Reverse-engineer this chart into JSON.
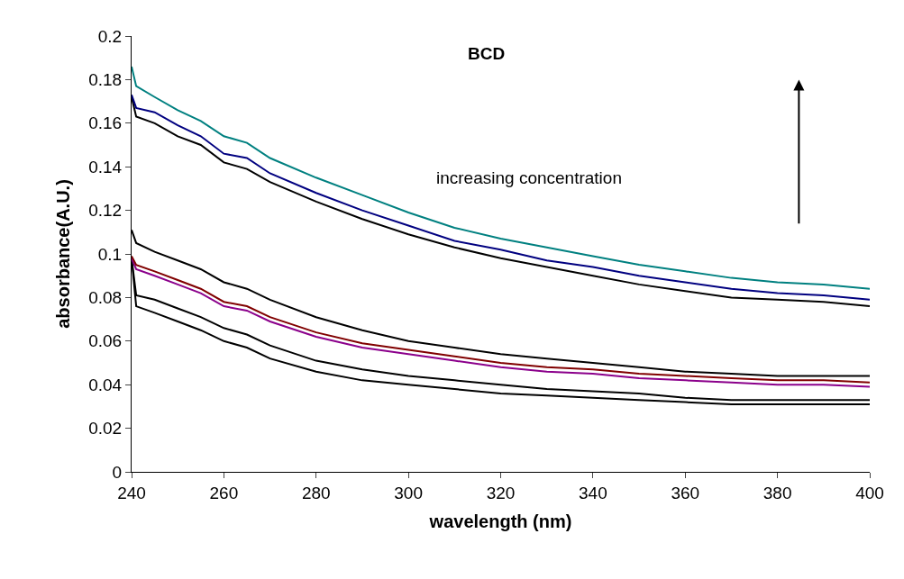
{
  "chart_data": {
    "type": "line",
    "title": "BCD",
    "xlabel": "wavelength (nm)",
    "ylabel": "absorbance(A.U.)",
    "annotations": [
      "increasing concentration"
    ],
    "x": [
      240,
      241,
      245,
      250,
      255,
      260,
      265,
      270,
      280,
      290,
      300,
      310,
      320,
      330,
      340,
      350,
      360,
      370,
      380,
      390,
      400
    ],
    "series": [
      {
        "color": "#000000",
        "values": [
          0.098,
          0.076,
          0.073,
          0.069,
          0.065,
          0.06,
          0.057,
          0.052,
          0.046,
          0.042,
          0.04,
          0.038,
          0.036,
          0.035,
          0.034,
          0.033,
          0.032,
          0.031,
          0.031,
          0.031,
          0.031
        ]
      },
      {
        "color": "#000000",
        "values": [
          0.098,
          0.081,
          0.079,
          0.075,
          0.071,
          0.066,
          0.063,
          0.058,
          0.051,
          0.047,
          0.044,
          0.042,
          0.04,
          0.038,
          0.037,
          0.036,
          0.034,
          0.033,
          0.033,
          0.033,
          0.033
        ]
      },
      {
        "color": "#8b008b",
        "values": [
          0.098,
          0.093,
          0.09,
          0.086,
          0.082,
          0.076,
          0.074,
          0.069,
          0.062,
          0.057,
          0.054,
          0.051,
          0.048,
          0.046,
          0.045,
          0.043,
          0.042,
          0.041,
          0.04,
          0.04,
          0.039
        ]
      },
      {
        "color": "#800000",
        "values": [
          0.099,
          0.095,
          0.092,
          0.088,
          0.084,
          0.078,
          0.076,
          0.071,
          0.064,
          0.059,
          0.056,
          0.053,
          0.05,
          0.048,
          0.047,
          0.045,
          0.044,
          0.043,
          0.042,
          0.042,
          0.041
        ]
      },
      {
        "color": "#000000",
        "values": [
          0.111,
          0.105,
          0.101,
          0.097,
          0.093,
          0.087,
          0.084,
          0.079,
          0.071,
          0.065,
          0.06,
          0.057,
          0.054,
          0.052,
          0.05,
          0.048,
          0.046,
          0.045,
          0.044,
          0.044,
          0.044
        ]
      },
      {
        "color": "#000000",
        "values": [
          0.172,
          0.163,
          0.16,
          0.154,
          0.15,
          0.142,
          0.139,
          0.133,
          0.124,
          0.116,
          0.109,
          0.103,
          0.098,
          0.094,
          0.09,
          0.086,
          0.083,
          0.08,
          0.079,
          0.078,
          0.076
        ]
      },
      {
        "color": "#000080",
        "values": [
          0.173,
          0.167,
          0.165,
          0.159,
          0.154,
          0.146,
          0.144,
          0.137,
          0.128,
          0.12,
          0.113,
          0.106,
          0.102,
          0.097,
          0.094,
          0.09,
          0.087,
          0.084,
          0.082,
          0.081,
          0.079
        ]
      },
      {
        "color": "#008080",
        "values": [
          0.186,
          0.177,
          0.172,
          0.166,
          0.161,
          0.154,
          0.151,
          0.144,
          0.135,
          0.127,
          0.119,
          0.112,
          0.107,
          0.103,
          0.099,
          0.095,
          0.092,
          0.089,
          0.087,
          0.086,
          0.084
        ]
      }
    ],
    "xlim": [
      240,
      400
    ],
    "xticks": [
      240,
      260,
      280,
      300,
      320,
      340,
      360,
      380,
      400
    ],
    "ylim": [
      0,
      0.2
    ],
    "yticks": [
      0,
      0.02,
      0.04,
      0.06,
      0.08,
      0.1,
      0.12,
      0.14,
      0.16,
      0.18,
      0.2
    ],
    "marker": "none",
    "line_style": "solid"
  }
}
